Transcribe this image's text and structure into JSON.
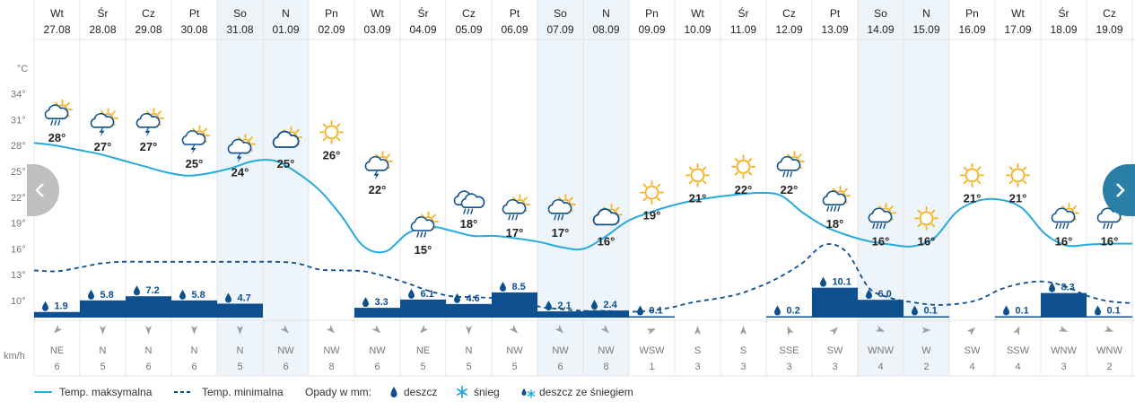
{
  "chart_data": {
    "type": "line",
    "title": "",
    "y_axis_unit": "°C",
    "y_ticks": [
      "10°",
      "13°",
      "16°",
      "19°",
      "22°",
      "25°",
      "28°",
      "31°",
      "34°"
    ],
    "y_range": [
      8,
      37
    ],
    "wind_unit": "km/h",
    "days": [
      {
        "day": "Wt",
        "date": "27.08",
        "tmax": 28,
        "tmin": 13.5,
        "precip": "1.9",
        "precip_v": 1.9,
        "ptype": "rain",
        "wind_dir": "NE",
        "wind_speed": "6",
        "weather": "partly-sunny-rain-icon",
        "weekend": false
      },
      {
        "day": "Śr",
        "date": "28.08",
        "tmax": 27,
        "tmin": 14.3,
        "precip": "5.8",
        "precip_v": 5.8,
        "ptype": "rain",
        "wind_dir": "N",
        "wind_speed": "5",
        "weather": "partly-sunny-storm-icon",
        "weekend": false
      },
      {
        "day": "Cz",
        "date": "29.08",
        "tmax": 27,
        "tmin": 14.5,
        "precip": "7.2",
        "precip_v": 7.2,
        "ptype": "rain",
        "wind_dir": "N",
        "wind_speed": "6",
        "weather": "partly-sunny-storm-icon",
        "weekend": false
      },
      {
        "day": "Pt",
        "date": "30.08",
        "tmax": 25,
        "tmin": 14.5,
        "precip": "5.8",
        "precip_v": 5.8,
        "ptype": "rain",
        "wind_dir": "N",
        "wind_speed": "6",
        "weather": "partly-sunny-storm-icon",
        "weekend": false
      },
      {
        "day": "So",
        "date": "31.08",
        "tmax": 24,
        "tmin": 14.5,
        "precip": "4.7",
        "precip_v": 4.7,
        "ptype": "rain",
        "wind_dir": "N",
        "wind_speed": "5",
        "weather": "partly-sunny-storm-icon",
        "weekend": true
      },
      {
        "day": "N",
        "date": "01.09",
        "tmax": 25,
        "tmin": 14.5,
        "precip": "",
        "precip_v": 0,
        "ptype": "none",
        "wind_dir": "NW",
        "wind_speed": "6",
        "weather": "partly-cloudy-icon",
        "weekend": true
      },
      {
        "day": "Pn",
        "date": "02.09",
        "tmax": 26,
        "tmin": 13.6,
        "precip": "",
        "precip_v": 0,
        "ptype": "none",
        "wind_dir": "NW",
        "wind_speed": "8",
        "weather": "sunny-icon",
        "weekend": false
      },
      {
        "day": "Wt",
        "date": "03.09",
        "tmax": 22,
        "tmin": 13.5,
        "precip": "3.3",
        "precip_v": 3.3,
        "ptype": "rain",
        "wind_dir": "NW",
        "wind_speed": "6",
        "weather": "partly-sunny-storm-icon",
        "weekend": false
      },
      {
        "day": "Śr",
        "date": "04.09",
        "tmax": 15,
        "tmin": 12.0,
        "precip": "6.1",
        "precip_v": 6.1,
        "ptype": "rain",
        "wind_dir": "NE",
        "wind_speed": "5",
        "weather": "partly-sunny-rain-icon",
        "weekend": false
      },
      {
        "day": "Cz",
        "date": "05.09",
        "tmax": 18,
        "tmin": 10.5,
        "precip": "4.6",
        "precip_v": 4.6,
        "ptype": "rain",
        "wind_dir": "N",
        "wind_speed": "5",
        "weather": "cloudy-rain-icon",
        "weekend": false
      },
      {
        "day": "Pt",
        "date": "06.09",
        "tmax": 17,
        "tmin": 10.2,
        "precip": "8.5",
        "precip_v": 8.5,
        "ptype": "rain",
        "wind_dir": "NW",
        "wind_speed": "5",
        "weather": "partly-sunny-rain-icon",
        "weekend": false
      },
      {
        "day": "So",
        "date": "07.09",
        "tmax": 17,
        "tmin": 9.0,
        "precip": "2.1",
        "precip_v": 2.1,
        "ptype": "rain",
        "wind_dir": "NW",
        "wind_speed": "6",
        "weather": "partly-sunny-rain-icon",
        "weekend": true
      },
      {
        "day": "N",
        "date": "08.09",
        "tmax": 16,
        "tmin": 8.8,
        "precip": "2.4",
        "precip_v": 2.4,
        "ptype": "rain",
        "wind_dir": "NW",
        "wind_speed": "8",
        "weather": "partly-cloudy-icon",
        "weekend": true
      },
      {
        "day": "Pn",
        "date": "09.09",
        "tmax": 19,
        "tmin": 8.7,
        "precip": "0.1",
        "precip_v": 0.1,
        "ptype": "rain",
        "wind_dir": "WSW",
        "wind_speed": "1",
        "weather": "sunny-icon",
        "weekend": false
      },
      {
        "day": "Wt",
        "date": "10.09",
        "tmax": 21,
        "tmin": 9.8,
        "precip": "",
        "precip_v": 0,
        "ptype": "none",
        "wind_dir": "S",
        "wind_speed": "3",
        "weather": "sunny-icon",
        "weekend": false
      },
      {
        "day": "Śr",
        "date": "11.09",
        "tmax": 22,
        "tmin": 10.7,
        "precip": "",
        "precip_v": 0,
        "ptype": "none",
        "wind_dir": "S",
        "wind_speed": "3",
        "weather": "sunny-icon",
        "weekend": false
      },
      {
        "day": "Cz",
        "date": "12.09",
        "tmax": 22,
        "tmin": 12.8,
        "precip": "0.2",
        "precip_v": 0.2,
        "ptype": "rain",
        "wind_dir": "SSE",
        "wind_speed": "3",
        "weather": "partly-sunny-rain-icon",
        "weekend": false
      },
      {
        "day": "Pt",
        "date": "13.09",
        "tmax": 18,
        "tmin": 16.5,
        "precip": "10.1",
        "precip_v": 10.1,
        "ptype": "rain",
        "wind_dir": "SW",
        "wind_speed": "3",
        "weather": "partly-sunny-heavy-rain-icon",
        "weekend": false
      },
      {
        "day": "So",
        "date": "14.09",
        "tmax": 16,
        "tmin": 11.5,
        "precip": "6.0",
        "precip_v": 6.0,
        "ptype": "rain",
        "wind_dir": "WNW",
        "wind_speed": "4",
        "weather": "partly-sunny-heavy-rain-icon",
        "weekend": true
      },
      {
        "day": "N",
        "date": "15.09",
        "tmax": 16,
        "tmin": 9.8,
        "precip": "0.1",
        "precip_v": 0.1,
        "ptype": "rain",
        "wind_dir": "W",
        "wind_speed": "2",
        "weather": "sunny-icon",
        "weekend": true
      },
      {
        "day": "Pn",
        "date": "16.09",
        "tmax": 21,
        "tmin": 10.2,
        "precip": "",
        "precip_v": 0,
        "ptype": "none",
        "wind_dir": "SW",
        "wind_speed": "4",
        "weather": "sunny-icon",
        "weekend": false
      },
      {
        "day": "Wt",
        "date": "17.09",
        "tmax": 21,
        "tmin": 11.8,
        "precip": "0.1",
        "precip_v": 0.1,
        "ptype": "rain",
        "wind_dir": "SSW",
        "wind_speed": "4",
        "weather": "sunny-icon",
        "weekend": false
      },
      {
        "day": "Śr",
        "date": "18.09",
        "tmax": 16,
        "tmin": 11.5,
        "precip": "8.3",
        "precip_v": 8.3,
        "ptype": "rain",
        "wind_dir": "WNW",
        "wind_speed": "3",
        "weather": "partly-sunny-heavy-rain-icon",
        "weekend": false
      },
      {
        "day": "Cz",
        "date": "19.09",
        "tmax": 16,
        "tmin": 9.8,
        "precip": "0.1",
        "precip_v": 0.1,
        "ptype": "rain",
        "wind_dir": "WNW",
        "wind_speed": "2",
        "weather": "partly-sunny-rain-icon",
        "weekend": false
      }
    ],
    "max_curve": [
      28.3,
      28.0,
      27.5,
      27.0,
      26.3,
      25.6,
      24.9,
      24.5,
      24.8,
      25.4,
      26.2,
      26.2,
      24.8,
      22.8,
      19.8,
      16.3,
      15.7,
      17.8,
      18.6,
      18.1,
      17.5,
      17.5,
      17.2,
      16.8,
      16.2,
      16.0,
      17.4,
      19.2,
      20.2,
      21.0,
      21.6,
      22.0,
      22.3,
      22.5,
      22.2,
      20.2,
      18.6,
      17.6,
      16.9,
      16.5,
      16.3,
      17.3,
      20.3,
      21.6,
      21.7,
      20.7,
      17.8,
      16.4,
      16.5,
      16.6,
      16.6
    ],
    "min_curve": [
      13.5,
      13.4,
      13.8,
      14.3,
      14.5,
      14.5,
      14.5,
      14.5,
      14.5,
      14.5,
      14.5,
      14.5,
      14.3,
      13.6,
      13.5,
      13.4,
      12.8,
      12.0,
      11.1,
      10.5,
      10.4,
      10.3,
      10.2,
      9.3,
      9.0,
      8.8,
      8.8,
      8.7,
      8.8,
      9.2,
      9.8,
      10.2,
      10.7,
      11.6,
      12.8,
      14.4,
      16.5,
      15.6,
      11.5,
      10.3,
      9.8,
      9.5,
      9.6,
      10.1,
      11.3,
      12.0,
      12.2,
      11.6,
      10.5,
      9.9,
      9.7
    ],
    "legend": {
      "tmax": "Temp. maksymalna",
      "tmin": "Temp. minimalna",
      "precip_title": "Opady w mm:",
      "rain": "deszcz",
      "snow": "śnieg",
      "mixed": "deszcz ze śniegiem"
    },
    "colors": {
      "line": "#27a9de",
      "bar": "#0d4f8f",
      "text_dark": "#222222",
      "text_muted": "#777777",
      "weekend": "#edf5fb",
      "grid": "#e4e4e4",
      "nav_left": "#bfbfbf",
      "nav_right": "#2a7fa6",
      "sun": "#f6b21b"
    }
  }
}
